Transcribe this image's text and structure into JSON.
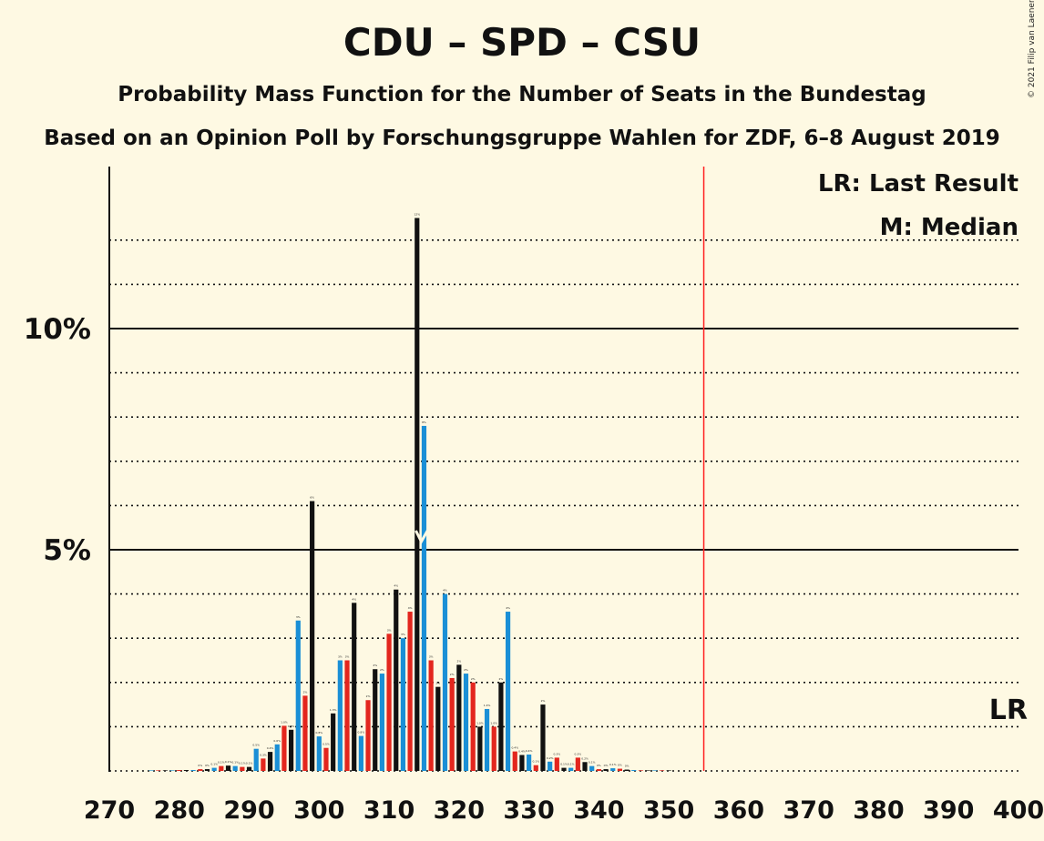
{
  "chart_data": {
    "type": "bar",
    "title": "CDU – SPD – CSU",
    "subtitle": "Probability Mass Function for the Number of Seats in the Bundestag",
    "subtitle2": "Based on an Opinion Poll by Forschungsgruppe Wahlen for ZDF, 6–8 August 2019",
    "copyright": "© 2021 Filip van Laenen",
    "xlabel": "",
    "ylabel": "",
    "xlim": [
      270,
      400
    ],
    "ylim": [
      0,
      13.7
    ],
    "x_ticks": [
      270,
      280,
      290,
      300,
      310,
      320,
      330,
      340,
      350,
      360,
      370,
      380,
      390,
      400
    ],
    "y_ticks": [
      {
        "value": 5,
        "label": "5%"
      },
      {
        "value": 10,
        "label": "10%"
      }
    ],
    "minor_gridlines": [
      1,
      2,
      3,
      4,
      6,
      7,
      8,
      9,
      11,
      12
    ],
    "majority_line": 355,
    "last_result_label": "LR",
    "median_seat": 315,
    "legend": {
      "lr": "LR: Last Result",
      "median": "M: Median"
    },
    "colors": {
      "background": "#fef9e3",
      "blue": "#1a8fd6",
      "red": "#e3261e",
      "black": "#111111",
      "majority": "#ff2020"
    },
    "x": [
      276,
      277,
      278,
      279,
      280,
      281,
      282,
      283,
      284,
      285,
      286,
      287,
      288,
      289,
      290,
      291,
      292,
      293,
      294,
      295,
      296,
      297,
      298,
      299,
      300,
      301,
      302,
      303,
      304,
      305,
      306,
      307,
      308,
      309,
      310,
      311,
      312,
      313,
      314,
      315,
      316,
      317,
      318,
      319,
      320,
      321,
      322,
      323,
      324,
      325,
      326,
      327,
      328,
      329,
      330,
      331,
      332,
      333,
      334,
      335,
      336,
      337,
      338,
      339,
      340,
      341,
      342,
      343,
      344,
      345,
      346,
      347,
      348,
      349,
      350
    ],
    "values": [
      0.01,
      0.01,
      0.01,
      0.01,
      0.02,
      0.02,
      0.02,
      0.04,
      0.04,
      0.07,
      0.11,
      0.12,
      0.11,
      0.09,
      0.09,
      0.5,
      0.28,
      0.43,
      0.6,
      1.02,
      0.93,
      3.4,
      1.7,
      6.1,
      0.78,
      0.52,
      1.3,
      2.5,
      2.5,
      3.8,
      0.79,
      1.6,
      2.3,
      2.2,
      3.1,
      4.1,
      3.0,
      3.6,
      12.5,
      7.8,
      2.5,
      1.9,
      4.0,
      2.1,
      2.4,
      2.2,
      2.0,
      1.0,
      1.4,
      1.0,
      2.0,
      3.6,
      0.44,
      0.36,
      0.37,
      0.13,
      1.5,
      0.21,
      0.3,
      0.07,
      0.07,
      0.3,
      0.2,
      0.11,
      0.04,
      0.04,
      0.06,
      0.05,
      0.03,
      0.02,
      0.01,
      0.01,
      0.01,
      0.01,
      0.01
    ],
    "labels": [
      "0%",
      "0%",
      "0%",
      "0%",
      "0%",
      "0%",
      "0%",
      "0%",
      "0%",
      "0.1%",
      "0.1%",
      "0.1%",
      "0.1%",
      "0.1%",
      "0.1%",
      "0.5%",
      "0.3%",
      "0.4%",
      "0.6%",
      "1.0%",
      "0.9%",
      "3%",
      "2%",
      "6%",
      "0.8%",
      "0.5%",
      "1.3%",
      "3%",
      "3%",
      "4%",
      "0.8%",
      "2%",
      "2%",
      "2%",
      "3%",
      "4%",
      "3%",
      "4%",
      "12%",
      "8%",
      "3%",
      "2%",
      "4%",
      "2%",
      "2%",
      "2%",
      "2%",
      "1.0%",
      "1.4%",
      "1.0%",
      "2%",
      "4%",
      "0.4%",
      "0.4%",
      "0.4%",
      "0.1%",
      "2%",
      "0.2%",
      "0.3%",
      "0.1%",
      "0.1%",
      "0.3%",
      "0.2%",
      "0.1%",
      "0%",
      "0%",
      "0.1%",
      "0%",
      "0%",
      "0%",
      "0%",
      "0%",
      "0%",
      "0%",
      "0%"
    ]
  }
}
